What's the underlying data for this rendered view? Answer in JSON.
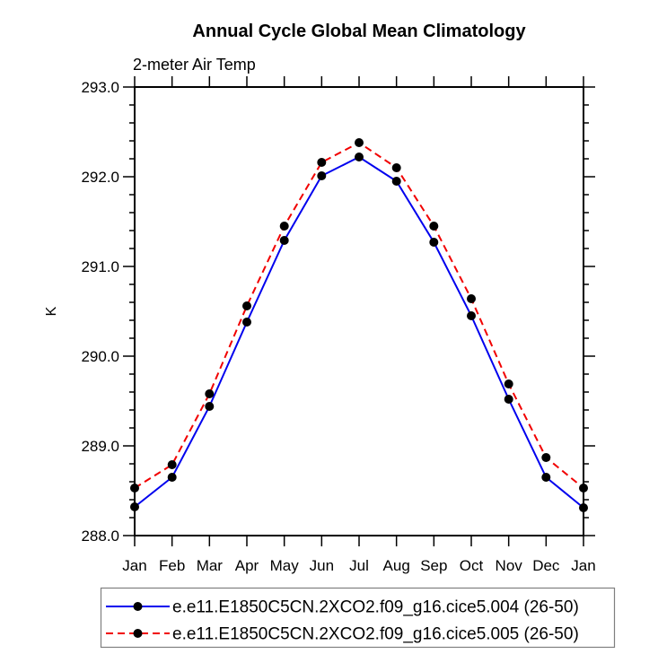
{
  "header": {
    "title": "Annual Cycle Global Mean Climatology",
    "subtitle": "2-meter Air Temp"
  },
  "chart_data": {
    "type": "line",
    "title": "Annual Cycle Global Mean Climatology",
    "subtitle": "2-meter Air Temp",
    "xlabel": "",
    "ylabel": "K",
    "categories": [
      "Jan",
      "Feb",
      "Mar",
      "Apr",
      "May",
      "Jun",
      "Jul",
      "Aug",
      "Sep",
      "Oct",
      "Nov",
      "Dec",
      "Jan"
    ],
    "ylim": [
      288.0,
      293.0
    ],
    "ytick_major_interval": 1.0,
    "ytick_minor_interval": 0.2,
    "ytick_labels": [
      "288.0",
      "289.0",
      "290.0",
      "291.0",
      "292.0",
      "293.0"
    ],
    "grid": false,
    "legend_position": "bottom",
    "frame_color": "#000000",
    "marker_radius": 5,
    "series": [
      {
        "name": "e.e11.E1850C5CN.2XCO2.f09_g16.cice5.004 (26-50)",
        "color": "#0000ee",
        "style": "solid",
        "marker": "circle",
        "marker_color": "#000000",
        "values": [
          288.32,
          288.65,
          289.44,
          290.38,
          291.29,
          292.01,
          292.22,
          291.95,
          291.27,
          290.45,
          289.52,
          288.65,
          288.31
        ]
      },
      {
        "name": "e.e11.E1850C5CN.2XCO2.f09_g16.cice5.005 (26-50)",
        "color": "#f10000",
        "style": "dashed",
        "marker": "circle",
        "marker_color": "#000000",
        "values": [
          288.53,
          288.79,
          289.58,
          290.56,
          291.45,
          292.16,
          292.38,
          292.1,
          291.45,
          290.64,
          289.69,
          288.87,
          288.53
        ]
      }
    ]
  }
}
